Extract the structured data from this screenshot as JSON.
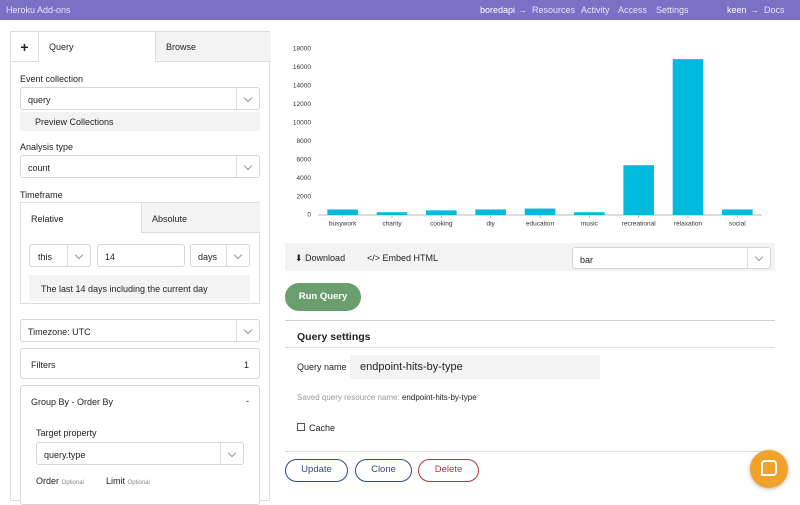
{
  "header": {
    "brand": "Heroku Add-ons",
    "app": "boredapi",
    "sep": "→",
    "links": [
      "Resources",
      "Activity",
      "Access",
      "Settings"
    ],
    "user": "keen",
    "docs": "Docs"
  },
  "sidebar": {
    "tabs": [
      "+",
      "Query",
      "Browse"
    ],
    "event_collection": {
      "label": "Event collection",
      "value": "query",
      "preview": "Preview Collections"
    },
    "analysis_type": {
      "label": "Analysis type",
      "value": "count"
    },
    "timeframe": {
      "label": "Timeframe",
      "tabs": [
        "Relative",
        "Absolute"
      ],
      "relative": "this",
      "amount": "14",
      "unit": "days",
      "note": "The last 14 days including the current day"
    },
    "timezone": "Timezone: UTC",
    "filters": {
      "label": "Filters",
      "count": "1"
    },
    "group_by": {
      "title": "Group By - Order By",
      "toggle": "-",
      "target_label": "Target property",
      "target_value": "query.type",
      "order_label": "Order",
      "limit_label": "Limit",
      "optional": "Optional"
    }
  },
  "chart_data": {
    "type": "bar",
    "categories": [
      "busywork",
      "charity",
      "cooking",
      "diy",
      "education",
      "music",
      "recreational",
      "relaxation",
      "social"
    ],
    "values": [
      600,
      300,
      500,
      600,
      700,
      300,
      5400,
      16900,
      600
    ],
    "color": "#00bbde",
    "ylim": [
      0,
      18000
    ],
    "yticks": [
      0,
      2000,
      4000,
      6000,
      8000,
      10000,
      12000,
      14000,
      16000,
      18000
    ],
    "grid": false
  },
  "toolbar": {
    "download": "Download",
    "embed": "Embed HTML",
    "chart_type": "bar"
  },
  "run": "Run Query",
  "settings": {
    "title": "Query settings",
    "name_label": "Query name",
    "name_value": "endpoint-hits-by-type",
    "saved_label": "Saved query resource name:",
    "saved_value": "endpoint-hits-by-type",
    "cache": "Cache"
  },
  "buttons": {
    "update": "Update",
    "clone": "Clone",
    "delete": "Delete"
  }
}
